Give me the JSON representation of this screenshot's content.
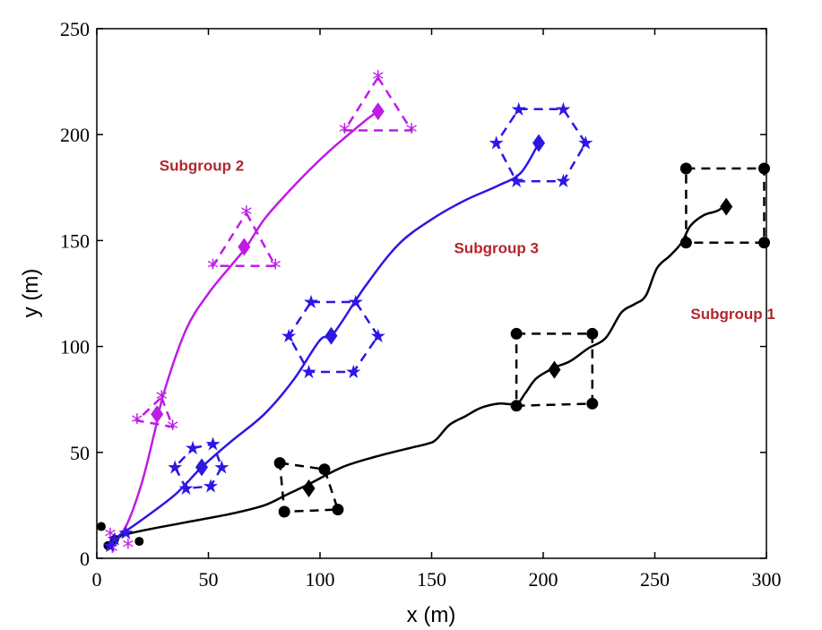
{
  "chart_data": {
    "type": "line",
    "xlabel": "x (m)",
    "ylabel": "y (m)",
    "xlim": [
      0,
      300
    ],
    "ylim": [
      0,
      250
    ],
    "xticks": [
      "0",
      "50",
      "100",
      "150",
      "200",
      "250",
      "300"
    ],
    "yticks": [
      "0",
      "50",
      "100",
      "150",
      "200",
      "250"
    ],
    "grid": false,
    "annotations": [
      {
        "text": "Subgroup 1",
        "x": 285,
        "y": 113
      },
      {
        "text": "Subgroup 2",
        "x": 47,
        "y": 183
      },
      {
        "text": "Subgroup 3",
        "x": 179,
        "y": 144
      }
    ],
    "series": [
      {
        "name": "Subgroup 1",
        "color": "#000000",
        "marker": "circle",
        "path": [
          [
            8,
            10
          ],
          [
            20,
            13
          ],
          [
            40,
            17
          ],
          [
            60,
            21
          ],
          [
            75,
            25
          ],
          [
            85,
            30
          ],
          [
            95,
            35
          ],
          [
            110,
            43
          ],
          [
            125,
            48
          ],
          [
            140,
            52
          ],
          [
            148,
            54
          ],
          [
            152,
            56
          ],
          [
            158,
            63
          ],
          [
            165,
            67
          ],
          [
            172,
            71
          ],
          [
            180,
            73
          ],
          [
            188,
            73
          ],
          [
            192,
            78
          ],
          [
            197,
            85
          ],
          [
            205,
            90
          ],
          [
            212,
            93
          ],
          [
            220,
            99
          ],
          [
            228,
            104
          ],
          [
            235,
            116
          ],
          [
            241,
            120
          ],
          [
            246,
            124
          ],
          [
            251,
            137
          ],
          [
            257,
            143
          ],
          [
            262,
            149
          ],
          [
            266,
            157
          ],
          [
            272,
            162
          ],
          [
            278,
            164
          ],
          [
            282,
            167
          ]
        ],
        "formations": [
          {
            "center": [
              95,
              33
            ],
            "vertices": [
              [
                82,
                45
              ],
              [
                102,
                42
              ],
              [
                108,
                23
              ],
              [
                84,
                22
              ]
            ],
            "closed": true
          },
          {
            "center": [
              205,
              89
            ],
            "vertices": [
              [
                188,
                106
              ],
              [
                222,
                106
              ],
              [
                222,
                73
              ],
              [
                188,
                72
              ]
            ],
            "closed": true
          },
          {
            "center": [
              282,
              166
            ],
            "vertices": [
              [
                264,
                184
              ],
              [
                299,
                184
              ],
              [
                299,
                149
              ],
              [
                264,
                149
              ]
            ],
            "closed": true
          }
        ],
        "initial": [
          [
            2,
            15
          ],
          [
            5,
            6
          ],
          [
            8,
            9
          ],
          [
            19,
            8
          ]
        ]
      },
      {
        "name": "Subgroup 2",
        "color": "#bf1be6",
        "marker": "asterisk",
        "path": [
          [
            7,
            8
          ],
          [
            13,
            15
          ],
          [
            20,
            35
          ],
          [
            26,
            60
          ],
          [
            30,
            78
          ],
          [
            40,
            108
          ],
          [
            50,
            125
          ],
          [
            60,
            138
          ],
          [
            67,
            147
          ],
          [
            75,
            160
          ],
          [
            85,
            172
          ],
          [
            95,
            183
          ],
          [
            105,
            193
          ],
          [
            115,
            202
          ],
          [
            122,
            208
          ],
          [
            126,
            211
          ]
        ],
        "formations": [
          {
            "center": [
              27,
              68
            ],
            "vertices": [
              [
                29,
                76
              ],
              [
                34,
                62
              ],
              [
                18,
                65
              ]
            ],
            "closed": true
          },
          {
            "center": [
              66,
              147
            ],
            "vertices": [
              [
                67,
                163
              ],
              [
                80,
                138
              ],
              [
                52,
                138
              ]
            ],
            "closed": true
          },
          {
            "center": [
              126,
              211
            ],
            "vertices": [
              [
                126,
                227
              ],
              [
                141,
                202
              ],
              [
                111,
                202
              ]
            ],
            "closed": true
          }
        ],
        "initial": [
          [
            6,
            11
          ],
          [
            7,
            4
          ],
          [
            14,
            6
          ]
        ]
      },
      {
        "name": "Subgroup 3",
        "color": "#2d17e3",
        "marker": "star",
        "path": [
          [
            9,
            10
          ],
          [
            20,
            18
          ],
          [
            35,
            30
          ],
          [
            47,
            43
          ],
          [
            60,
            55
          ],
          [
            75,
            68
          ],
          [
            88,
            84
          ],
          [
            100,
            103
          ],
          [
            106,
            106
          ],
          [
            120,
            128
          ],
          [
            135,
            148
          ],
          [
            150,
            160
          ],
          [
            165,
            169
          ],
          [
            180,
            176
          ],
          [
            190,
            182
          ],
          [
            198,
            196
          ]
        ],
        "formations": [
          {
            "center": [
              47,
              43
            ],
            "vertices": [
              [
                43,
                52
              ],
              [
                52,
                54
              ],
              [
                56,
                43
              ],
              [
                51,
                34
              ],
              [
                40,
                33
              ],
              [
                35,
                43
              ]
            ],
            "closed": true
          },
          {
            "center": [
              105,
              105
            ],
            "vertices": [
              [
                96,
                121
              ],
              [
                116,
                121
              ],
              [
                126,
                105
              ],
              [
                115,
                88
              ],
              [
                95,
                88
              ],
              [
                86,
                105
              ]
            ],
            "closed": true
          },
          {
            "center": [
              198,
              196
            ],
            "vertices": [
              [
                189,
                212
              ],
              [
                209,
                212
              ],
              [
                219,
                196
              ],
              [
                209,
                178
              ],
              [
                188,
                178
              ],
              [
                179,
                196
              ]
            ],
            "closed": true
          }
        ],
        "initial": [
          [
            6,
            6
          ],
          [
            8,
            9
          ],
          [
            13,
            12
          ]
        ]
      }
    ]
  }
}
